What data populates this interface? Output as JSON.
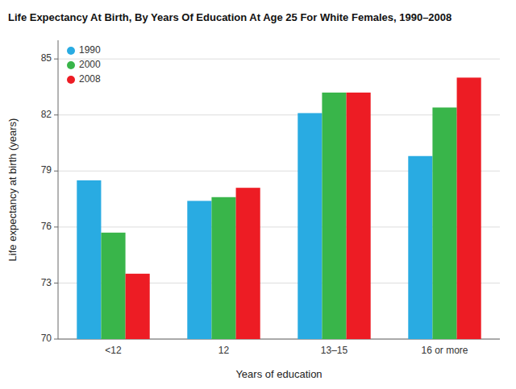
{
  "chart_data": {
    "type": "bar",
    "title": "Life Expectancy At Birth, By Years Of Education At Age 25 For White Females, 1990–2008",
    "x_label": "Years of education",
    "y_label": "Life expectancy at birth (years)",
    "categories": [
      "<12",
      "12",
      "13–15",
      "16 or more"
    ],
    "series": [
      {
        "name": "1990",
        "color": "#29ABE2",
        "values": [
          78.5,
          77.4,
          82.1,
          79.8
        ]
      },
      {
        "name": "2000",
        "color": "#39B54A",
        "values": [
          75.7,
          77.6,
          83.2,
          82.4
        ]
      },
      {
        "name": "2008",
        "color": "#ED1C24",
        "values": [
          73.5,
          78.1,
          83.2,
          84.0
        ]
      }
    ],
    "ylim": [
      70,
      86
    ],
    "yticks": [
      70,
      73,
      76,
      79,
      82,
      85
    ],
    "grid": true,
    "legend": "upper left"
  }
}
